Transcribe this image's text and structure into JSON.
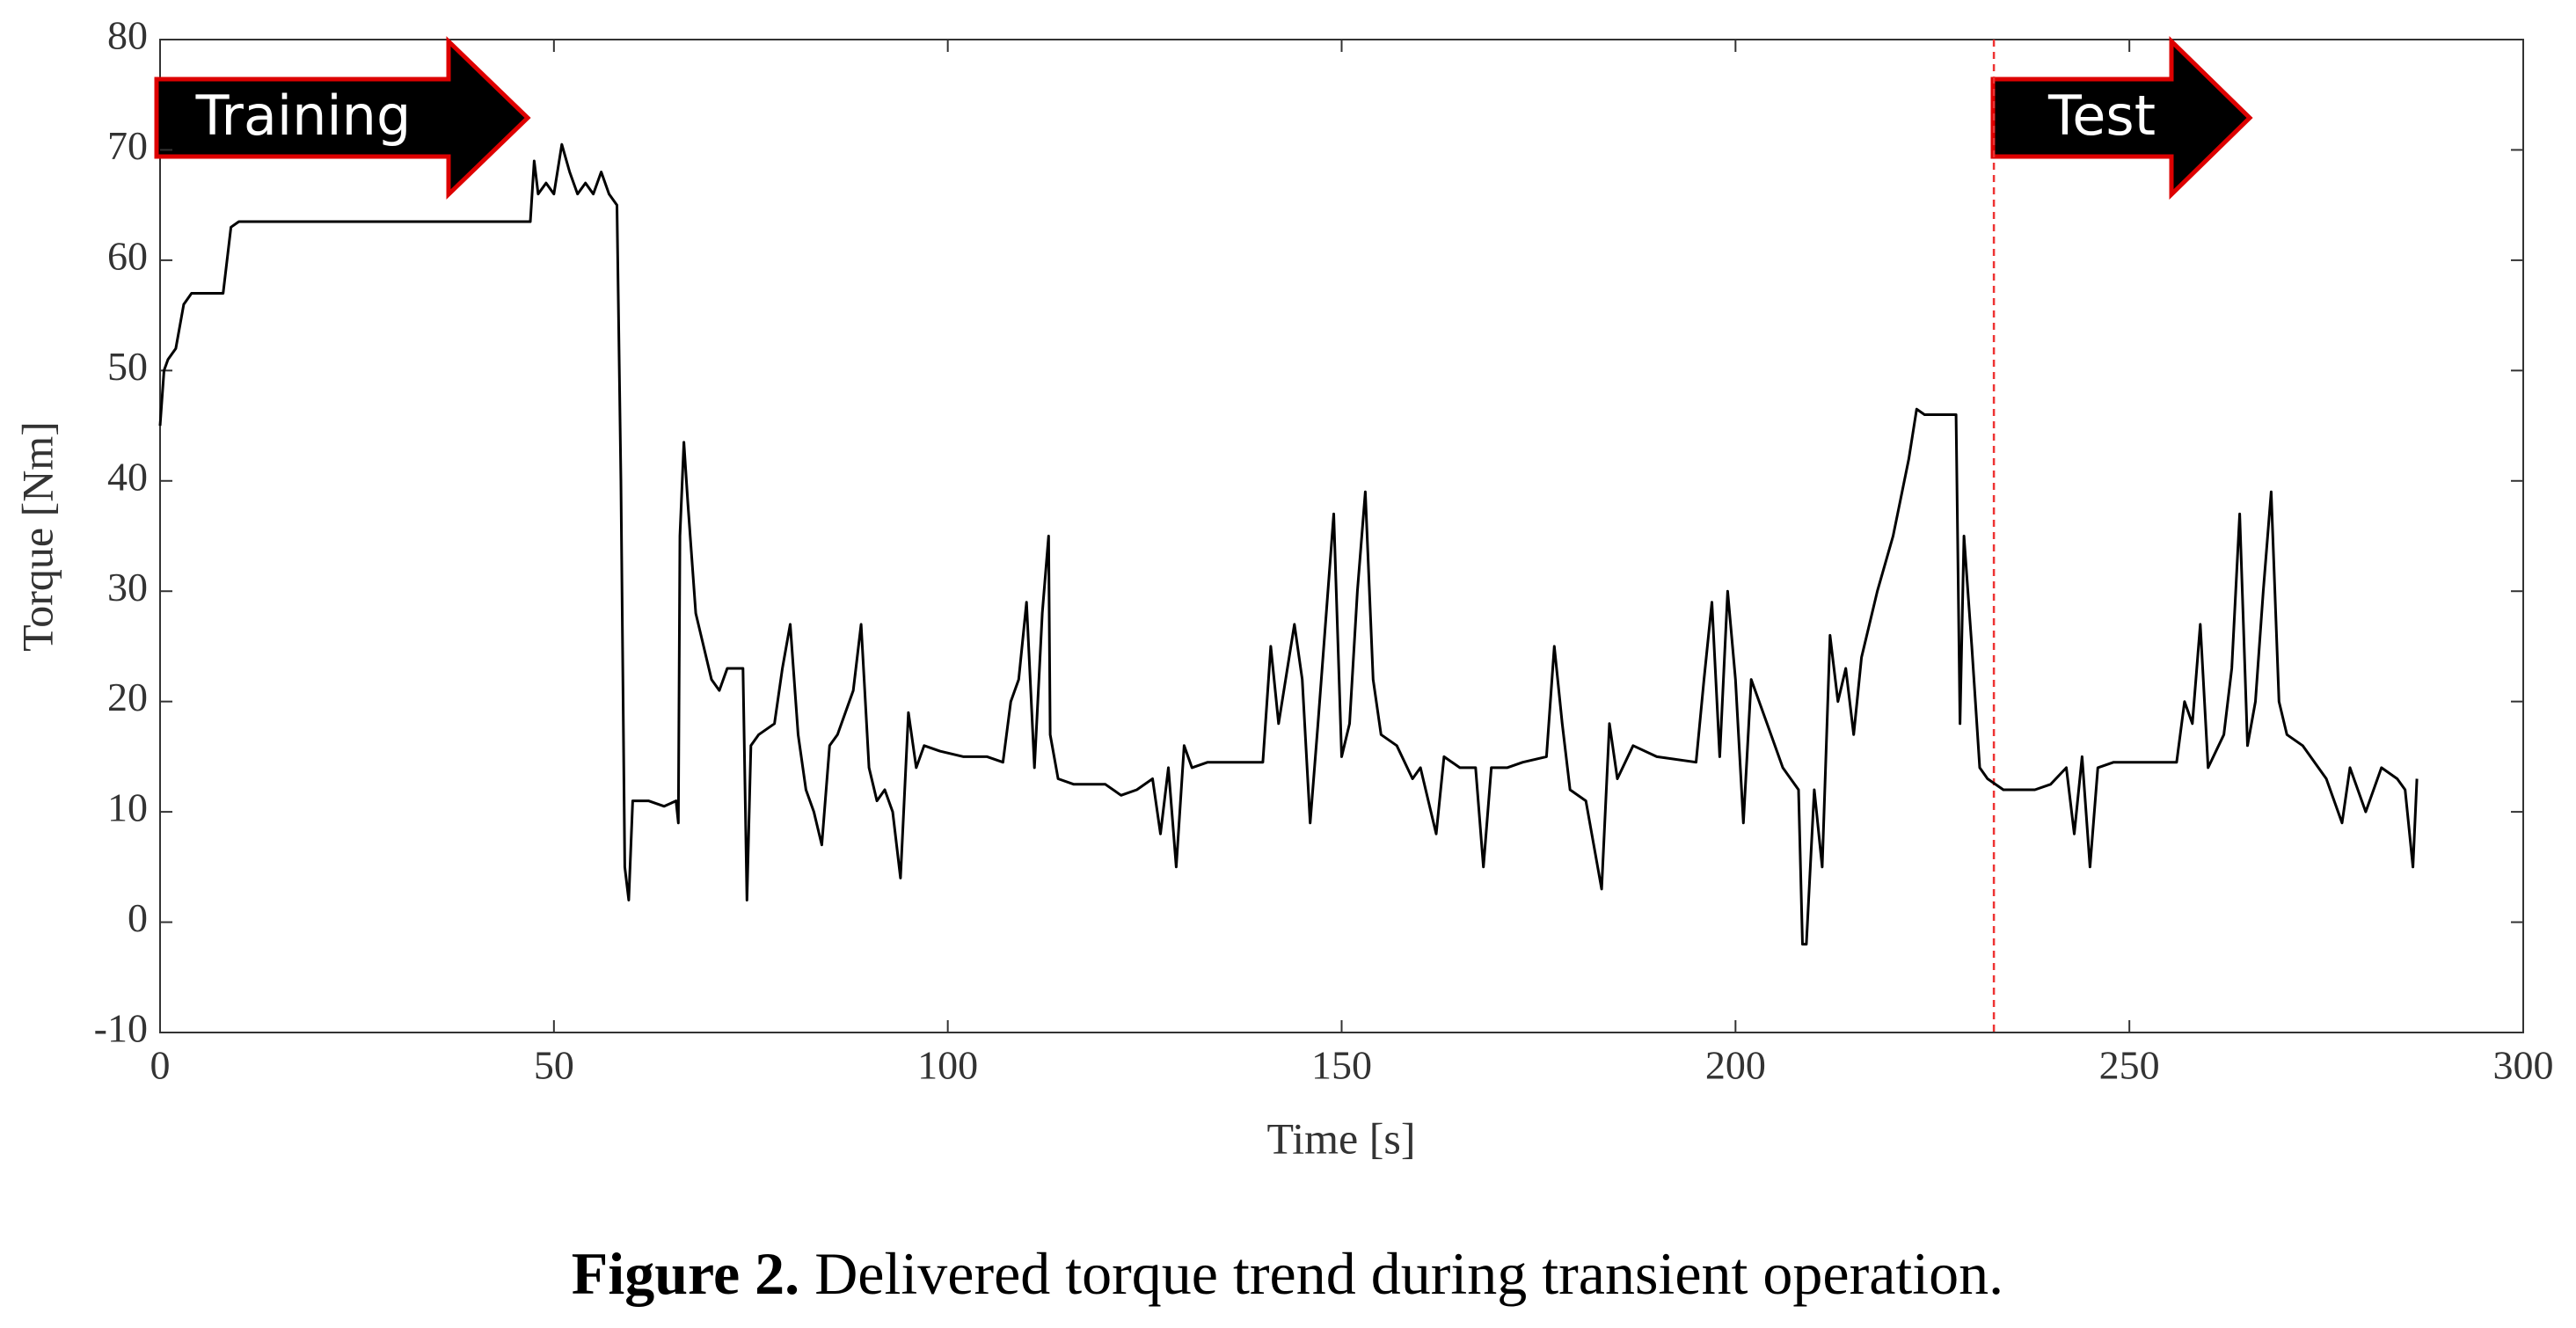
{
  "chart_data": {
    "type": "line",
    "x_label": "Time [s]",
    "y_label": "Torque [Nm]",
    "caption_label": "Figure 2.",
    "caption": "Delivered torque trend during transient operation.",
    "annotations": [
      "Training",
      "Test"
    ],
    "split_x": 232.8,
    "color": "#000000",
    "xlim": [
      0,
      300
    ],
    "xticks": [
      0,
      50,
      100,
      150,
      200,
      250,
      300
    ],
    "ylim": [
      -10,
      80
    ],
    "yticks": [
      -10,
      0,
      10,
      20,
      30,
      40,
      50,
      60,
      70,
      80
    ],
    "x": [
      0,
      0.5,
      1,
      2,
      3,
      4,
      8,
      9,
      10,
      20,
      30,
      40,
      47,
      47.5,
      48,
      49,
      50,
      51,
      52,
      53,
      54,
      55,
      56,
      57,
      58,
      58.5,
      59,
      59.5,
      60,
      62,
      64,
      65.5,
      65.8,
      66,
      66.5,
      67,
      68,
      70,
      71,
      72,
      74,
      74.5,
      75,
      76,
      78,
      79,
      80,
      81,
      82,
      83,
      84,
      85,
      86,
      88,
      89,
      90,
      91,
      92,
      93,
      94,
      95,
      96,
      97,
      99,
      102,
      105,
      107,
      108,
      109,
      110,
      111,
      112,
      112.8,
      113,
      114,
      116,
      120,
      122,
      124,
      126,
      127,
      128,
      129,
      130,
      131,
      133,
      137,
      140,
      141,
      142,
      144,
      145,
      146,
      147,
      149,
      150,
      151,
      152,
      153,
      154,
      155,
      157,
      159,
      160,
      162,
      163,
      165,
      167,
      168,
      169,
      171,
      173,
      176,
      177,
      178,
      179,
      181,
      183,
      184,
      185,
      187,
      190,
      195,
      196,
      197,
      198,
      199,
      200,
      201,
      202,
      204,
      206,
      208,
      208.5,
      209,
      210,
      211,
      212,
      213,
      214,
      215,
      216,
      218,
      220,
      222,
      223,
      224,
      228,
      228.5,
      229,
      230,
      231,
      232,
      234,
      238,
      240,
      242,
      243,
      244,
      245,
      246,
      248,
      252,
      256,
      257,
      258,
      259,
      260,
      262,
      263,
      264,
      265,
      266,
      267,
      268,
      269,
      270,
      272,
      274,
      275,
      277,
      278,
      280,
      282,
      284,
      285,
      286,
      286.5
    ],
    "values": [
      45,
      50,
      51,
      52,
      56,
      57,
      57,
      63,
      63.5,
      63.5,
      63.5,
      63.5,
      63.5,
      69,
      66,
      67,
      66,
      70.5,
      68,
      66,
      67,
      66,
      68,
      66,
      65,
      40,
      5,
      2,
      11,
      11,
      10.5,
      11,
      9,
      35,
      43.5,
      38,
      28,
      22,
      21,
      23,
      23,
      2,
      16,
      17,
      18,
      23,
      27,
      17,
      12,
      10,
      7,
      16,
      17,
      21,
      27,
      14,
      11,
      12,
      10,
      4,
      19,
      14,
      16,
      15.5,
      15,
      15,
      14.5,
      20,
      22,
      29,
      14,
      28,
      35,
      17,
      13,
      12.5,
      12.5,
      11.5,
      12,
      13,
      8,
      14,
      5,
      16,
      14,
      14.5,
      14.5,
      14.5,
      25,
      18,
      27,
      22,
      9,
      18,
      37,
      15,
      18,
      30,
      39,
      22,
      17,
      16,
      13,
      14,
      8,
      15,
      14,
      14,
      5,
      14,
      14,
      14.5,
      15,
      25,
      18,
      12,
      11,
      3,
      18,
      13,
      16,
      15,
      14.5,
      22,
      29,
      15,
      30,
      22,
      9,
      22,
      18,
      14,
      12,
      -2,
      -2,
      12,
      5,
      26,
      20,
      23,
      17,
      24,
      30,
      35,
      42,
      46.5,
      46,
      46,
      18,
      35,
      25,
      14,
      13,
      12,
      12,
      12.5,
      14,
      8,
      15,
      5,
      14,
      14.5,
      14.5,
      14.5,
      20,
      18,
      27,
      14,
      17,
      23,
      37,
      16,
      20,
      30,
      39,
      20,
      17,
      16,
      14,
      13,
      9,
      14,
      10,
      14,
      13,
      12,
      5,
      13
    ]
  }
}
